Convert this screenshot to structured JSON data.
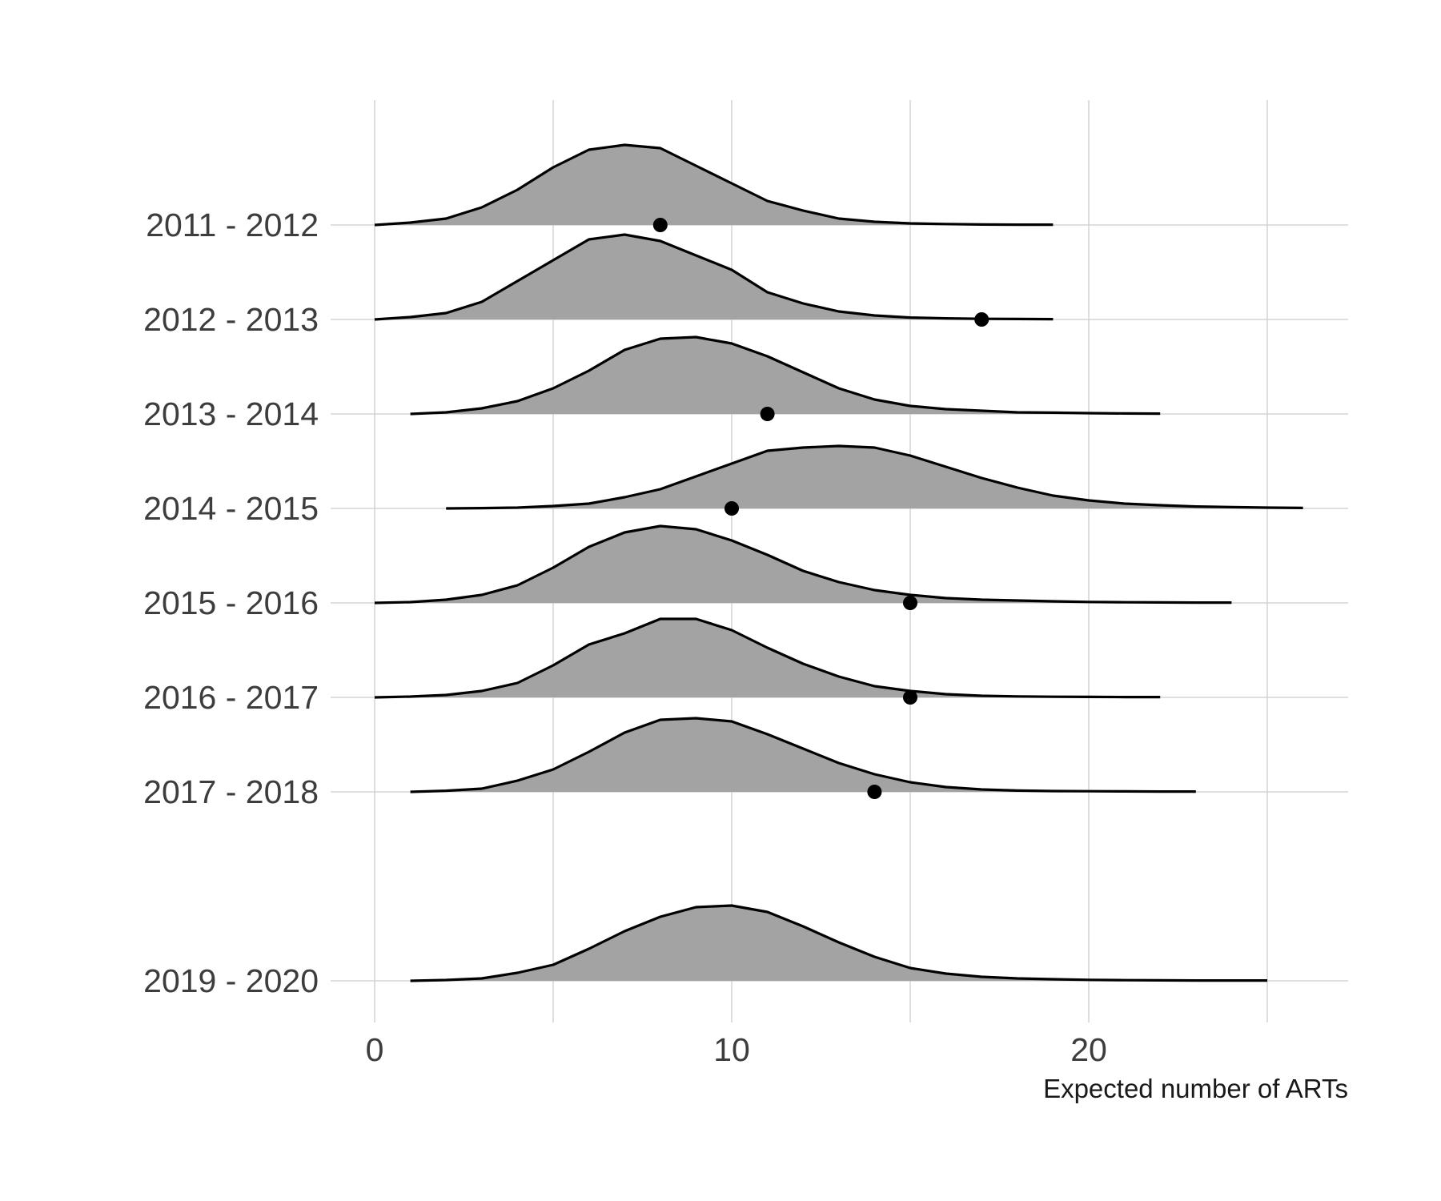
{
  "chart_data": {
    "type": "ridgeline",
    "xlabel": "Expected number of ARTs",
    "ylabel": "",
    "xlim": [
      -1.3,
      27.6
    ],
    "x_ticks": [
      0,
      10,
      20
    ],
    "x_minor_ticks": [
      5,
      15,
      25
    ],
    "grid": true,
    "colors": {
      "fill": "#a3a3a3",
      "line": "#000000",
      "point": "#000000",
      "grid": "#cccccc"
    },
    "series": [
      {
        "name": "2011 - 2012",
        "x": [
          0,
          1,
          2,
          3,
          4,
          5,
          6,
          7,
          8,
          9,
          10,
          11,
          12,
          13,
          14,
          15,
          16,
          17,
          18,
          19
        ],
        "density": [
          0.0,
          0.015,
          0.04,
          0.11,
          0.22,
          0.36,
          0.47,
          0.5,
          0.48,
          0.37,
          0.26,
          0.15,
          0.09,
          0.04,
          0.02,
          0.01,
          0.006,
          0.003,
          0.002,
          0.002
        ],
        "observed": 8
      },
      {
        "name": "2012 - 2013",
        "x": [
          0,
          1,
          2,
          3,
          4,
          5,
          6,
          7,
          8,
          9,
          10,
          11,
          12,
          13,
          14,
          15,
          16,
          17,
          18,
          19
        ],
        "density": [
          0.0,
          0.015,
          0.04,
          0.11,
          0.24,
          0.37,
          0.5,
          0.53,
          0.49,
          0.4,
          0.31,
          0.17,
          0.1,
          0.05,
          0.025,
          0.012,
          0.007,
          0.004,
          0.003,
          0.002
        ],
        "observed": 17
      },
      {
        "name": "2013 - 2014",
        "x": [
          1,
          2,
          3,
          4,
          5,
          6,
          7,
          8,
          9,
          10,
          11,
          12,
          13,
          14,
          15,
          16,
          17,
          18,
          19,
          20,
          21,
          22
        ],
        "density": [
          0.0,
          0.01,
          0.035,
          0.08,
          0.16,
          0.27,
          0.4,
          0.47,
          0.48,
          0.44,
          0.36,
          0.26,
          0.16,
          0.09,
          0.05,
          0.03,
          0.02,
          0.01,
          0.008,
          0.005,
          0.003,
          0.002
        ],
        "observed": 11
      },
      {
        "name": "2014 - 2015",
        "x": [
          2,
          3,
          4,
          5,
          6,
          7,
          8,
          9,
          10,
          11,
          12,
          13,
          14,
          15,
          16,
          17,
          18,
          19,
          20,
          21,
          22,
          23,
          24,
          25,
          26
        ],
        "density": [
          0.0,
          0.002,
          0.005,
          0.015,
          0.03,
          0.07,
          0.12,
          0.2,
          0.28,
          0.36,
          0.38,
          0.39,
          0.38,
          0.33,
          0.26,
          0.19,
          0.13,
          0.08,
          0.05,
          0.03,
          0.02,
          0.012,
          0.008,
          0.005,
          0.003
        ],
        "observed": 10
      },
      {
        "name": "2015 - 2016",
        "x": [
          0,
          1,
          2,
          3,
          4,
          5,
          6,
          7,
          8,
          9,
          10,
          11,
          12,
          13,
          14,
          15,
          16,
          17,
          18,
          19,
          20,
          21,
          22,
          23,
          24
        ],
        "density": [
          0.0,
          0.005,
          0.02,
          0.05,
          0.11,
          0.22,
          0.35,
          0.44,
          0.48,
          0.46,
          0.39,
          0.3,
          0.2,
          0.13,
          0.08,
          0.05,
          0.03,
          0.02,
          0.015,
          0.01,
          0.006,
          0.004,
          0.003,
          0.002,
          0.002
        ],
        "observed": 15
      },
      {
        "name": "2016 - 2017",
        "x": [
          0,
          1,
          2,
          3,
          4,
          5,
          6,
          7,
          8,
          9,
          10,
          11,
          12,
          13,
          14,
          15,
          16,
          17,
          18,
          19,
          20,
          21,
          22
        ],
        "density": [
          0.0,
          0.005,
          0.015,
          0.04,
          0.09,
          0.2,
          0.33,
          0.4,
          0.49,
          0.49,
          0.42,
          0.31,
          0.21,
          0.13,
          0.07,
          0.04,
          0.02,
          0.01,
          0.006,
          0.004,
          0.003,
          0.002,
          0.002
        ],
        "observed": 15
      },
      {
        "name": "2017 - 2018",
        "x": [
          1,
          2,
          3,
          4,
          5,
          6,
          7,
          8,
          9,
          10,
          11,
          12,
          13,
          14,
          15,
          16,
          17,
          18,
          19,
          20,
          21,
          22,
          23
        ],
        "density": [
          0.0,
          0.007,
          0.02,
          0.07,
          0.14,
          0.25,
          0.37,
          0.45,
          0.46,
          0.44,
          0.36,
          0.27,
          0.18,
          0.11,
          0.06,
          0.03,
          0.015,
          0.008,
          0.005,
          0.004,
          0.003,
          0.002,
          0.002
        ],
        "observed": 14
      },
      {
        "name": "2019 - 2020",
        "x": [
          1,
          2,
          3,
          4,
          5,
          6,
          7,
          8,
          9,
          10,
          11,
          12,
          13,
          14,
          15,
          16,
          17,
          18,
          19,
          20,
          21,
          22,
          23,
          24,
          25
        ],
        "density": [
          0.0,
          0.005,
          0.015,
          0.05,
          0.1,
          0.2,
          0.31,
          0.4,
          0.46,
          0.47,
          0.43,
          0.34,
          0.24,
          0.15,
          0.08,
          0.045,
          0.025,
          0.015,
          0.01,
          0.006,
          0.004,
          0.003,
          0.002,
          0.002,
          0.002
        ],
        "observed": null
      }
    ]
  }
}
